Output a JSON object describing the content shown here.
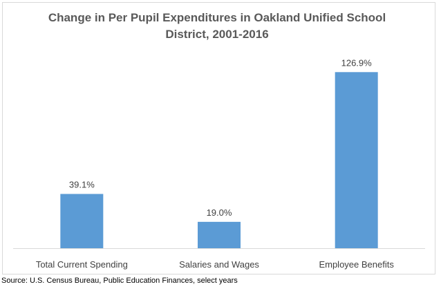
{
  "chart_data": {
    "type": "bar",
    "title": "Change in Per Pupil Expenditures in Oakland Unified School District, 2001-2016",
    "categories": [
      "Total Current Spending",
      "Salaries and Wages",
      "Employee Benefits"
    ],
    "values": [
      39.1,
      19.0,
      126.9
    ],
    "data_labels": [
      "39.1%",
      "19.0%",
      "126.9%"
    ],
    "unit": "%",
    "xlabel": "",
    "ylabel": "",
    "ylim": [
      0,
      140
    ],
    "grid": false,
    "legend": "none",
    "bar_color": "#5b9bd5",
    "axis_color": "#d9d9d9",
    "label_color": "#404040"
  },
  "source_note": "Source: U.S. Census Bureau, Public Education Finances, select years"
}
